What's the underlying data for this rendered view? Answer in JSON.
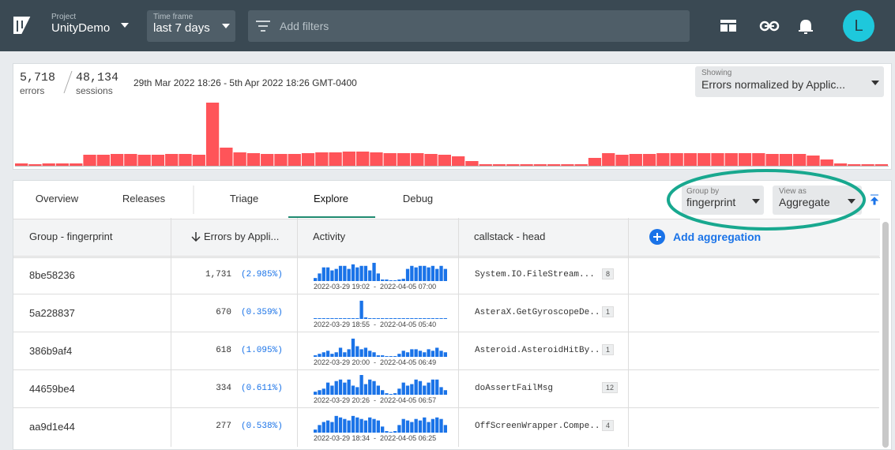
{
  "header": {
    "project_label": "Project",
    "project": "UnityDemo",
    "timeframe_label": "Time frame",
    "timeframe": "last 7 days",
    "filter_placeholder": "Add filters",
    "avatar": "L"
  },
  "summary": {
    "errors": "5,718",
    "errors_label": "errors",
    "sessions": "48,134",
    "sessions_label": "sessions",
    "range": "29th Mar 2022 18:26 - 5th Apr 2022 18:26 GMT-0400",
    "showing_label": "Showing",
    "showing": "Errors normalized by Applic...",
    "histogram": [
      3,
      2,
      3,
      3,
      3,
      14,
      14,
      15,
      15,
      14,
      14,
      15,
      15,
      14,
      80,
      23,
      17,
      16,
      15,
      15,
      15,
      16,
      17,
      17,
      18,
      18,
      17,
      16,
      16,
      16,
      15,
      14,
      12,
      6,
      2,
      2,
      2,
      2,
      2,
      2,
      2,
      2,
      10,
      16,
      14,
      15,
      15,
      16,
      16,
      16,
      16,
      16,
      16,
      16,
      16,
      15,
      15,
      15,
      13,
      8,
      3,
      2,
      2,
      2
    ]
  },
  "tabs": {
    "items": [
      "Overview",
      "Releases",
      "Triage",
      "Explore",
      "Debug"
    ],
    "active": 3
  },
  "controls": {
    "group_by_label": "Group by",
    "group_by": "fingerprint",
    "view_as_label": "View as",
    "view_as": "Aggregate"
  },
  "table": {
    "columns": [
      "Group - fingerprint",
      "Errors by Appli...",
      "Activity",
      "callstack - head"
    ],
    "add_aggregation": "Add aggregation",
    "rows": [
      {
        "group": "8be58236",
        "count": "1,731",
        "percent": "(2.985%)",
        "activity": [
          4,
          10,
          18,
          18,
          14,
          16,
          20,
          20,
          16,
          22,
          18,
          20,
          20,
          14,
          24,
          10,
          2,
          2,
          1,
          1,
          2,
          3,
          16,
          20,
          18,
          20,
          20,
          18,
          20,
          16,
          20,
          16
        ],
        "range": "2022-03-29 19:02  -  2022-04-05 07:00",
        "callstack": "System.IO.FileStream...",
        "frames": "8"
      },
      {
        "group": "5a228837",
        "count": "670",
        "percent": "(0.359%)",
        "activity": [
          1,
          1,
          1,
          1,
          1,
          1,
          1,
          1,
          1,
          1,
          1,
          24,
          2,
          1,
          1,
          1,
          1,
          1,
          1,
          1,
          1,
          1,
          1,
          1,
          1,
          1,
          1,
          1,
          1,
          1,
          1,
          1
        ],
        "range": "2022-03-29 18:55  -  2022-04-05 05:40",
        "callstack": "AsteraX.GetGyroscopeDe...",
        "frames": "1"
      },
      {
        "group": "386b9af4",
        "count": "618",
        "percent": "(1.095%)",
        "activity": [
          2,
          4,
          6,
          8,
          4,
          6,
          12,
          6,
          10,
          24,
          14,
          10,
          12,
          8,
          6,
          2,
          2,
          1,
          1,
          1,
          4,
          8,
          6,
          10,
          10,
          8,
          6,
          10,
          8,
          12,
          8,
          6
        ],
        "range": "2022-03-29 20:00  -  2022-04-05 06:49",
        "callstack": "Asteroid.AsteroidHitBy...",
        "frames": "1"
      },
      {
        "group": "44659be4",
        "count": "334",
        "percent": "(0.611%)",
        "activity": [
          4,
          6,
          8,
          16,
          12,
          18,
          20,
          16,
          20,
          12,
          10,
          26,
          14,
          20,
          18,
          12,
          6,
          2,
          1,
          2,
          8,
          16,
          12,
          14,
          20,
          18,
          12,
          16,
          20,
          20,
          10,
          6
        ],
        "range": "2022-03-29 20:26  -  2022-04-05 06:57",
        "callstack": "doAssertFailMsg",
        "frames": "12"
      },
      {
        "group": "aa9d1e44",
        "count": "277",
        "percent": "(0.538%)",
        "activity": [
          4,
          10,
          14,
          16,
          14,
          22,
          20,
          18,
          16,
          22,
          20,
          18,
          16,
          20,
          18,
          16,
          8,
          2,
          1,
          2,
          10,
          18,
          16,
          14,
          18,
          16,
          20,
          14,
          18,
          20,
          18,
          10
        ],
        "range": "2022-03-29 18:34  -  2022-04-05 06:25",
        "callstack": "OffScreenWrapper.Compe...",
        "frames": "4"
      }
    ]
  }
}
